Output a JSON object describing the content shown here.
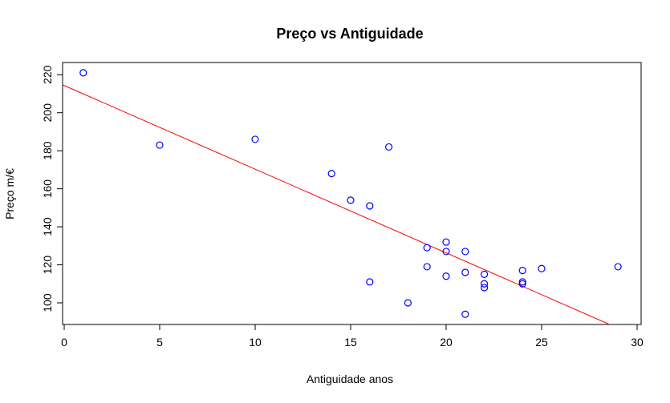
{
  "chart_data": {
    "type": "scatter",
    "title": "Preço vs Antiguidade",
    "xlabel": "Antiguidade anos",
    "ylabel": "Preço m/€",
    "xlim": [
      0,
      30
    ],
    "ylim": [
      90,
      225
    ],
    "x_ticks": [
      0,
      5,
      10,
      15,
      20,
      25,
      30
    ],
    "y_ticks": [
      100,
      120,
      140,
      160,
      180,
      200,
      220
    ],
    "point_color": "#0000ff",
    "line_color": "#ff0000",
    "points": [
      {
        "x": 1,
        "y": 221
      },
      {
        "x": 5,
        "y": 183
      },
      {
        "x": 10,
        "y": 186
      },
      {
        "x": 14,
        "y": 168
      },
      {
        "x": 15,
        "y": 154
      },
      {
        "x": 16,
        "y": 151
      },
      {
        "x": 16,
        "y": 111
      },
      {
        "x": 17,
        "y": 182
      },
      {
        "x": 18,
        "y": 100
      },
      {
        "x": 19,
        "y": 129
      },
      {
        "x": 19,
        "y": 119
      },
      {
        "x": 20,
        "y": 132
      },
      {
        "x": 20,
        "y": 127
      },
      {
        "x": 20,
        "y": 114
      },
      {
        "x": 21,
        "y": 127
      },
      {
        "x": 21,
        "y": 116
      },
      {
        "x": 21,
        "y": 94
      },
      {
        "x": 22,
        "y": 115
      },
      {
        "x": 22,
        "y": 110
      },
      {
        "x": 22,
        "y": 108
      },
      {
        "x": 24,
        "y": 117
      },
      {
        "x": 24,
        "y": 111
      },
      {
        "x": 24,
        "y": 110
      },
      {
        "x": 25,
        "y": 118
      },
      {
        "x": 29,
        "y": 119
      }
    ],
    "regression_line": {
      "intercept": 214.3,
      "slope": -4.4
    }
  }
}
